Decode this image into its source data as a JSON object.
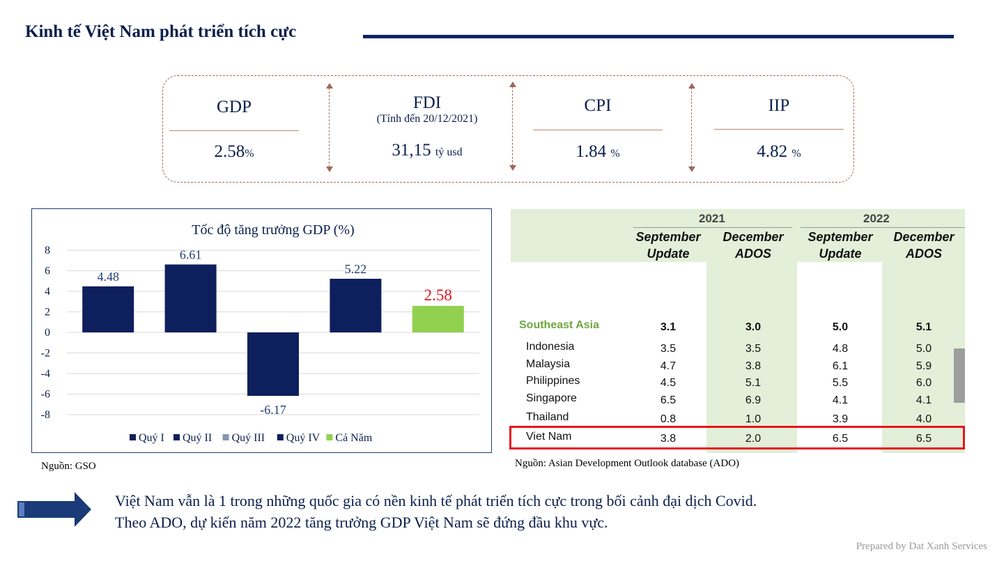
{
  "title": "Kinh tế Việt Nam phát triển tích cực",
  "kpis": [
    {
      "label": "GDP",
      "sub": "",
      "value": "2.58",
      "unit": "%"
    },
    {
      "label": "FDI",
      "sub": "(Tính đến 20/12/2021)",
      "value": "31,15",
      "unit": "tỷ usd"
    },
    {
      "label": "CPI",
      "sub": "",
      "value": "1.84",
      "unit": "%"
    },
    {
      "label": "IIP",
      "sub": "",
      "value": "4.82",
      "unit": "%"
    }
  ],
  "chart_data": {
    "type": "bar",
    "title": "Tốc độ tăng trưởng GDP (%)",
    "categories": [
      "Quý I",
      "Quý II",
      "Quý III",
      "Quý IV",
      "Cả Năm"
    ],
    "values": [
      4.48,
      6.61,
      -6.17,
      5.22,
      2.58
    ],
    "data_labels": [
      "4.48",
      "6.61",
      "-6.17",
      "5.22",
      "2.58"
    ],
    "colors": [
      "#0d1f5c",
      "#0d1f5c",
      "#0d1f5c",
      "#0d1f5c",
      "#92d050"
    ],
    "legend_colors": [
      "#0d1f5c",
      "#0d1f5c",
      "#8496b0",
      "#0d1f5c",
      "#92d050"
    ],
    "ylim": [
      -8,
      8
    ],
    "yticks": [
      "8",
      "6",
      "4",
      "2",
      "0",
      "-2",
      "-4",
      "-6",
      "-8"
    ],
    "legend": "bottom",
    "grid": true
  },
  "chart_source": "Nguồn: GSO",
  "ado_table": {
    "years": [
      "2021",
      "2022"
    ],
    "columns": [
      {
        "line1": "September",
        "line2": "Update"
      },
      {
        "line1": "December",
        "line2": "ADOS"
      },
      {
        "line1": "September",
        "line2": "Update"
      },
      {
        "line1": "December",
        "line2": "ADOS"
      }
    ],
    "rows": [
      {
        "name": "Southeast Asia",
        "values": [
          "3.1",
          "3.0",
          "5.0",
          "5.1"
        ]
      },
      {
        "name": "Indonesia",
        "values": [
          "3.5",
          "3.5",
          "4.8",
          "5.0"
        ]
      },
      {
        "name": "Malaysia",
        "values": [
          "4.7",
          "3.8",
          "6.1",
          "5.9"
        ]
      },
      {
        "name": "Philippines",
        "values": [
          "4.5",
          "5.1",
          "5.5",
          "6.0"
        ]
      },
      {
        "name": "Singapore",
        "values": [
          "6.5",
          "6.9",
          "4.1",
          "4.1"
        ]
      },
      {
        "name": "Thailand",
        "values": [
          "0.8",
          "1.0",
          "3.9",
          "4.0"
        ]
      },
      {
        "name": "Viet Nam",
        "values": [
          "3.8",
          "2.0",
          "6.5",
          "6.5"
        ]
      }
    ],
    "highlight_color": "#e8141c"
  },
  "ado_source": "Nguồn: Asian Development Outlook database (ADO)",
  "message": {
    "line1": "Việt Nam vẫn là 1 trong những quốc gia có nền kinh tế phát triển tích cực trong bối cảnh đại dịch Covid.",
    "line2": "Theo ADO, dự kiến năm 2022 tăng trưởng GDP Việt Nam sẽ đứng đầu khu vực."
  },
  "footer": "Prepared by Dat Xanh Services"
}
